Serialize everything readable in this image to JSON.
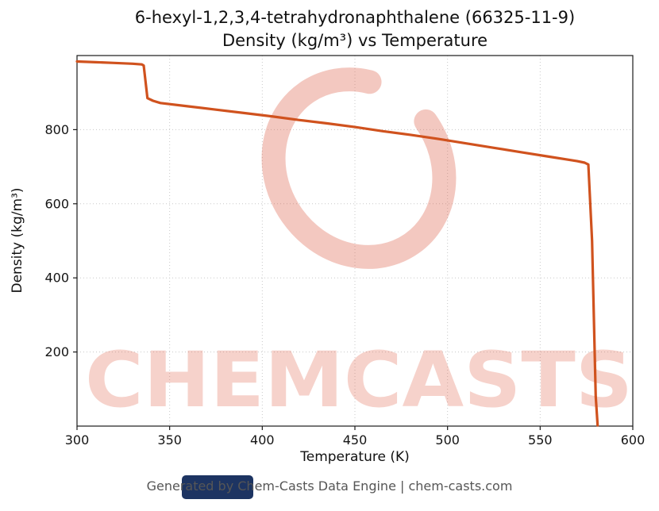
{
  "chart_data": {
    "type": "line",
    "title": "6-hexyl-1,2,3,4-tetrahydronaphthalene (66325-11-9)",
    "subtitle": "Density (kg/m³) vs Temperature",
    "xlabel": "Temperature (K)",
    "ylabel": "Density (kg/m³)",
    "xlim": [
      300,
      600
    ],
    "ylim": [
      0,
      1000
    ],
    "xticks": [
      300,
      350,
      400,
      450,
      500,
      550,
      600
    ],
    "yticks": [
      200,
      400,
      600,
      800
    ],
    "grid": true,
    "grid_style": "dotted",
    "legend": "none",
    "line_color": "#d0521e",
    "line_width": 3.2,
    "series": [
      {
        "name": "Density (kg/m³)",
        "points": [
          [
            300,
            984
          ],
          [
            310,
            982
          ],
          [
            320,
            980
          ],
          [
            330,
            978
          ],
          [
            335,
            976
          ],
          [
            336,
            973
          ],
          [
            338,
            885
          ],
          [
            341,
            878
          ],
          [
            345,
            872
          ],
          [
            360,
            863
          ],
          [
            375,
            854
          ],
          [
            390,
            845
          ],
          [
            405,
            836
          ],
          [
            420,
            826
          ],
          [
            435,
            817
          ],
          [
            450,
            807
          ],
          [
            465,
            796
          ],
          [
            480,
            786
          ],
          [
            495,
            775
          ],
          [
            510,
            763
          ],
          [
            525,
            751
          ],
          [
            540,
            739
          ],
          [
            555,
            727
          ],
          [
            565,
            719
          ],
          [
            570,
            715
          ],
          [
            574,
            711
          ],
          [
            576,
            706
          ],
          [
            578,
            500
          ],
          [
            580,
            80
          ],
          [
            581,
            2
          ]
        ]
      }
    ]
  },
  "watermark": {
    "text": "CHEMCASTS",
    "color": "#dd5f45",
    "text_opacity": 0.28,
    "ring_opacity": 0.34
  },
  "footer": {
    "text": "Generated by Chem-Casts Data Engine | chem-casts.com",
    "badge_color": "#1d3462"
  }
}
